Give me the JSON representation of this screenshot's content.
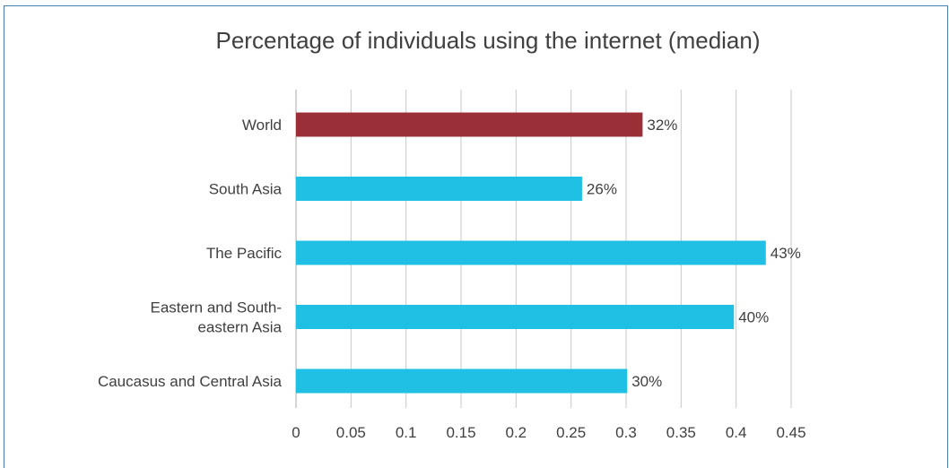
{
  "chart_data": {
    "type": "bar",
    "orientation": "horizontal",
    "title": "Percentage of individuals using the internet (median)",
    "categories": [
      "World",
      "South Asia",
      "The Pacific",
      "Eastern and South-eastern Asia",
      "Caucasus and Central Asia"
    ],
    "category_lines": [
      [
        "World"
      ],
      [
        "South Asia"
      ],
      [
        "The Pacific"
      ],
      [
        "Eastern and South-",
        "eastern Asia"
      ],
      [
        "Caucasus and Central Asia"
      ]
    ],
    "values": [
      0.315,
      0.26,
      0.427,
      0.398,
      0.301
    ],
    "data_labels": [
      "32%",
      "26%",
      "43%",
      "40%",
      "30%"
    ],
    "bar_colors": [
      "#9b2f38",
      "#1fc0e3",
      "#1fc0e3",
      "#1fc0e3",
      "#1fc0e3"
    ],
    "xlim": [
      0,
      0.45
    ],
    "xticks": [
      0,
      0.05,
      0.1,
      0.15,
      0.2,
      0.25,
      0.3,
      0.35,
      0.4,
      0.45
    ],
    "xtick_labels": [
      "0",
      "0.05",
      "0.1",
      "0.15",
      "0.2",
      "0.25",
      "0.3",
      "0.35",
      "0.4",
      "0.45"
    ],
    "grid": true,
    "legend": "none"
  },
  "colors": {
    "frame_border": "#4a7fb0",
    "gridline": "#c8c8c8",
    "text": "#404040"
  }
}
